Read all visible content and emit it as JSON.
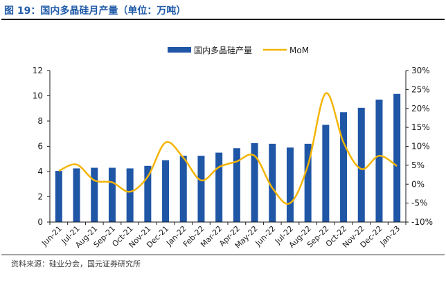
{
  "figure": {
    "title": "图 19：国内多晶硅月产量（单位：万吨）",
    "source": "资料来源：硅业分会，国元证券研究所"
  },
  "colors": {
    "bar": "#1f56a6",
    "line": "#f4b400",
    "axis": "#1a1a1a"
  },
  "chart_data": {
    "type": "bar",
    "categories": [
      "Jun-21",
      "Jul-21",
      "Aug-21",
      "Sep-21",
      "Oct-21",
      "Nov-21",
      "Dec-21",
      "Jan-22",
      "Feb-22",
      "Mar-22",
      "Apr-22",
      "May-22",
      "Jun-22",
      "Jul-22",
      "Aug-22",
      "Sep-22",
      "Oct-22",
      "Nov-22",
      "Dec-22",
      "Jan-23"
    ],
    "series": [
      {
        "name": "国内多晶硅产量",
        "type": "bar",
        "axis": "left",
        "values": [
          4.05,
          4.25,
          4.3,
          4.3,
          4.25,
          4.45,
          4.9,
          5.25,
          5.25,
          5.5,
          5.85,
          6.25,
          6.2,
          5.9,
          6.2,
          7.7,
          8.7,
          9.05,
          9.7,
          10.15
        ]
      },
      {
        "name": "MoM",
        "type": "line",
        "axis": "right",
        "values": [
          3.5,
          5.2,
          1.0,
          0.5,
          -2.0,
          2.0,
          11.0,
          7.0,
          1.0,
          4.5,
          6.0,
          7.5,
          -1.0,
          -5.0,
          5.0,
          24.0,
          11.0,
          4.0,
          7.5,
          4.8
        ]
      }
    ],
    "ylim": [
      0,
      12
    ],
    "yticks": [
      "0",
      "2",
      "4",
      "6",
      "8",
      "10",
      "12"
    ],
    "y2lim": [
      -10,
      30
    ],
    "y2ticks": [
      "-10%",
      "-5%",
      "0%",
      "5%",
      "10%",
      "15%",
      "20%",
      "25%",
      "30%"
    ],
    "legend_position": "top-center",
    "grid": false
  }
}
